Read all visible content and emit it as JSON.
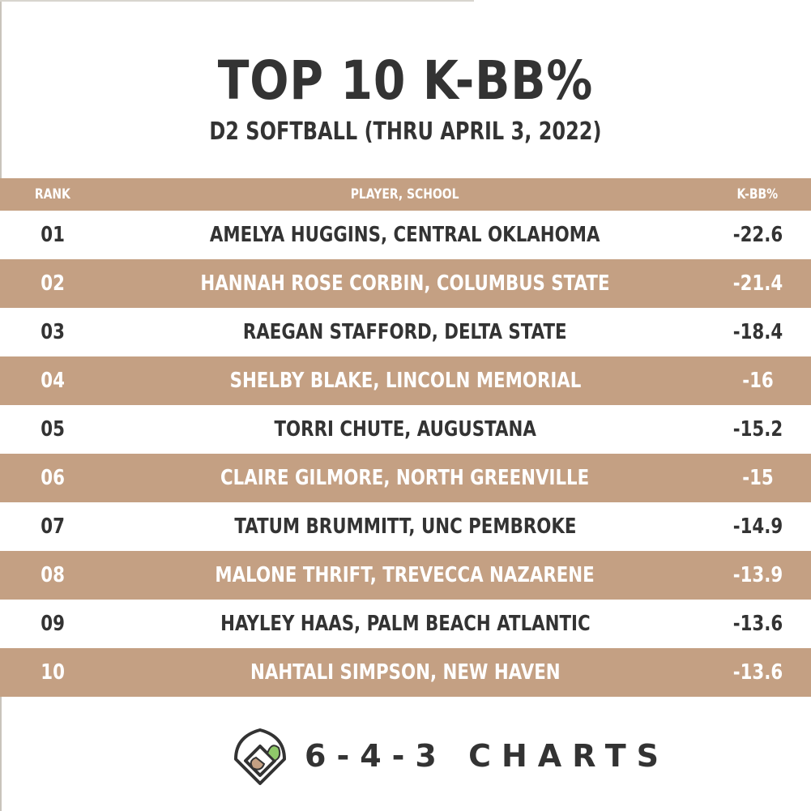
{
  "title": "TOP 10 K-BB%",
  "subtitle": "D2 SOFTBALL (THRU APRIL 3, 2022)",
  "colors": {
    "band": "#c4a083",
    "text_dark": "#333333",
    "text_light": "#ffffff",
    "logo_green": "#8fc96a",
    "logo_tan": "#c4a083"
  },
  "chart_data": {
    "type": "table",
    "columns": [
      "RANK",
      "PLAYER, SCHOOL",
      "K-BB%"
    ],
    "rows": [
      {
        "rank": "01",
        "player": "AMELYA HUGGINS, CENTRAL OKLAHOMA",
        "value": "-22.6"
      },
      {
        "rank": "02",
        "player": "HANNAH ROSE CORBIN, COLUMBUS STATE",
        "value": "-21.4"
      },
      {
        "rank": "03",
        "player": "RAEGAN STAFFORD, DELTA STATE",
        "value": "-18.4"
      },
      {
        "rank": "04",
        "player": "SHELBY BLAKE, LINCOLN MEMORIAL",
        "value": "-16"
      },
      {
        "rank": "05",
        "player": "TORRI CHUTE, AUGUSTANA",
        "value": "-15.2"
      },
      {
        "rank": "06",
        "player": "CLAIRE GILMORE, NORTH GREENVILLE",
        "value": "-15"
      },
      {
        "rank": "07",
        "player": "TATUM BRUMMITT, UNC PEMBROKE",
        "value": "-14.9"
      },
      {
        "rank": "08",
        "player": "MALONE THRIFT, TREVECCA NAZARENE",
        "value": "-13.9"
      },
      {
        "rank": "09",
        "player": "HAYLEY HAAS, PALM BEACH ATLANTIC",
        "value": "-13.6"
      },
      {
        "rank": "10",
        "player": "NAHTALI SIMPSON, NEW HAVEN",
        "value": "-13.6"
      }
    ]
  },
  "footer": {
    "brand": "6-4-3 CHARTS",
    "logo_icon": "baseball-diamond-icon"
  }
}
